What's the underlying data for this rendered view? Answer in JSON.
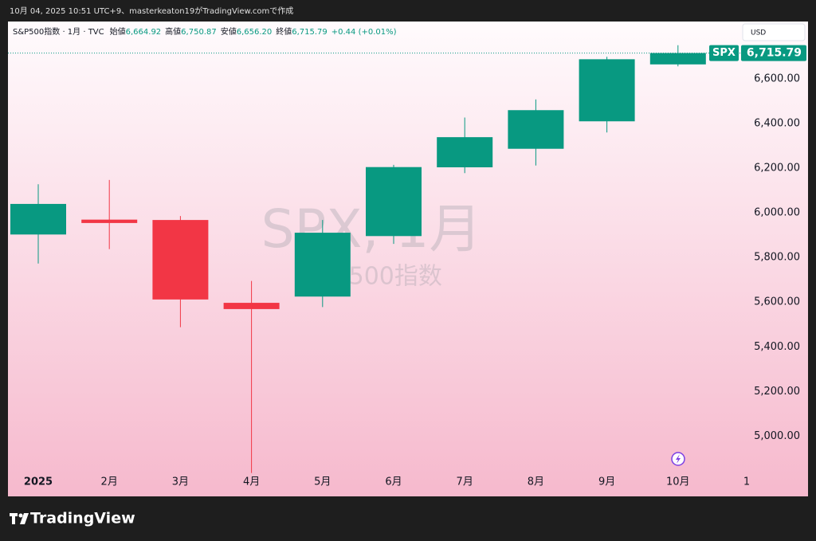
{
  "caption": "10月 04, 2025 10:51 UTC+9、masterkeaton19がTradingView.comで作成",
  "brand": "TradingView",
  "chart_data": {
    "type": "candlestick",
    "symbol_line": "S&P500指数 · 1月 · TVC",
    "ohlc_legend": [
      {
        "label": "始値",
        "value": "6,664.92"
      },
      {
        "label": "高値",
        "value": "6,750.87"
      },
      {
        "label": "安値",
        "value": "6,656.20"
      },
      {
        "label": "終値",
        "value": "6,715.79"
      }
    ],
    "change": "+0.44 (+0.01%)",
    "currency": "USD",
    "watermark": "SPX, 1月",
    "watermark_sub": "S&P500指数",
    "last_symbol": "SPX",
    "last_price_label": "6,715.79",
    "categories": [
      "2025",
      "2月",
      "3月",
      "4月",
      "5月",
      "6月",
      "7月",
      "8月",
      "9月",
      "10月",
      "1"
    ],
    "open": [
      5903,
      5969.65,
      5968,
      5597,
      5625,
      5896,
      6204,
      6287,
      6410,
      6664.92,
      null
    ],
    "high": [
      6128,
      6147.43,
      5986,
      5695,
      5968,
      6215,
      6427,
      6508,
      6699,
      6750.87,
      null
    ],
    "low": [
      5773,
      5837.66,
      5488,
      4835,
      5578,
      5861,
      6178,
      6212,
      6360,
      6656.2,
      null
    ],
    "close": [
      6040,
      5954.5,
      5612,
      5569,
      5911,
      6205,
      6339,
      6460,
      6688,
      6715.79,
      null
    ],
    "up_color": "#089981",
    "down_color": "#f23645",
    "ylim": [
      4830,
      6857
    ],
    "yticks": [
      {
        "value": 5000,
        "label": "5,000.00"
      },
      {
        "value": 5200,
        "label": "5,200.00"
      },
      {
        "value": 5400,
        "label": "5,400.00"
      },
      {
        "value": 5600,
        "label": "5,600.00"
      },
      {
        "value": 5800,
        "label": "5,800.00"
      },
      {
        "value": 6000,
        "label": "6,000.00"
      },
      {
        "value": 6200,
        "label": "6,200.00"
      },
      {
        "value": 6400,
        "label": "6,400.00"
      },
      {
        "value": 6600,
        "label": "6,600.00"
      }
    ]
  }
}
